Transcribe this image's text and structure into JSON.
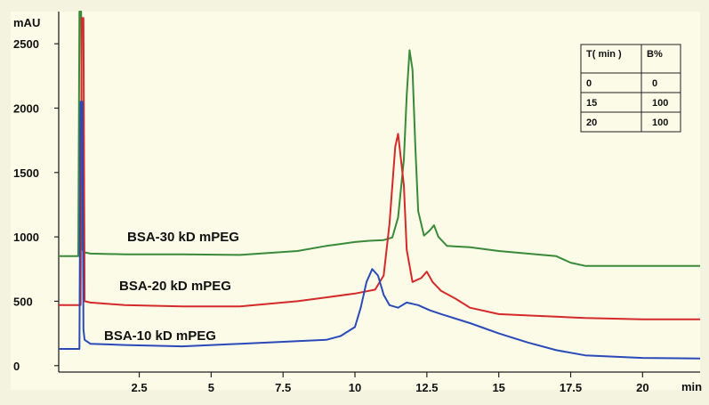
{
  "chart_data": {
    "type": "line",
    "xlabel": "min",
    "ylabel": "mAU",
    "xlim": [
      -0.3,
      22.0
    ],
    "ylim": [
      -50,
      2750
    ],
    "x_ticks": [
      "2.5",
      "5",
      "7.5",
      "10",
      "12.5",
      "15",
      "17.5",
      "20"
    ],
    "y_ticks": [
      "0",
      "500",
      "1000",
      "1500",
      "2000",
      "2500"
    ],
    "series": [
      {
        "name": "BSA-30 kD mPEG",
        "color": "#3a8a3a",
        "x": [
          -0.3,
          0.38,
          0.42,
          0.48,
          0.52,
          0.6,
          0.8,
          2,
          4,
          6,
          8,
          9,
          10,
          10.5,
          11,
          11.3,
          11.5,
          11.7,
          11.8,
          11.9,
          12.0,
          12.1,
          12.2,
          12.4,
          12.6,
          12.75,
          12.9,
          13.2,
          14,
          15,
          16,
          17,
          17.5,
          18,
          20,
          22
        ],
        "y": [
          850,
          850,
          2800,
          2800,
          900,
          880,
          870,
          865,
          865,
          860,
          890,
          930,
          960,
          970,
          975,
          995,
          1150,
          1600,
          2100,
          2450,
          2300,
          1700,
          1200,
          1010,
          1050,
          1090,
          1000,
          930,
          920,
          890,
          870,
          850,
          800,
          775,
          775,
          775
        ]
      },
      {
        "name": "BSA-20 kD mPEG",
        "color": "#d42a2a",
        "x": [
          -0.3,
          0.46,
          0.5,
          0.56,
          0.6,
          0.8,
          2,
          4,
          6,
          8,
          9,
          10,
          10.7,
          11.0,
          11.2,
          11.4,
          11.5,
          11.7,
          11.8,
          12.0,
          12.3,
          12.5,
          12.7,
          13,
          13.5,
          14,
          15,
          16,
          17,
          18,
          20,
          22
        ],
        "y": [
          470,
          470,
          2700,
          2700,
          500,
          490,
          470,
          460,
          460,
          500,
          530,
          560,
          590,
          700,
          1100,
          1700,
          1800,
          1400,
          900,
          650,
          680,
          730,
          650,
          580,
          520,
          450,
          400,
          390,
          380,
          370,
          360,
          360
        ]
      },
      {
        "name": "BSA-10 kD mPEG",
        "color": "#2a4ab8",
        "x": [
          -0.3,
          0.42,
          0.46,
          0.52,
          0.56,
          0.6,
          0.8,
          2,
          4,
          6,
          7,
          8,
          9,
          9.5,
          10,
          10.2,
          10.4,
          10.6,
          10.8,
          11.0,
          11.2,
          11.5,
          11.8,
          12.2,
          12.6,
          13,
          14,
          15,
          16,
          17,
          18,
          20,
          22
        ],
        "y": [
          130,
          130,
          2050,
          2050,
          280,
          200,
          170,
          160,
          150,
          170,
          180,
          190,
          200,
          230,
          300,
          450,
          650,
          750,
          700,
          550,
          470,
          450,
          490,
          470,
          430,
          400,
          330,
          250,
          180,
          120,
          80,
          60,
          55
        ]
      }
    ],
    "table": {
      "headers": [
        "T( min )",
        "B%"
      ],
      "rows": [
        [
          "0",
          "0"
        ],
        [
          "15",
          "100"
        ],
        [
          "20",
          "100"
        ]
      ]
    }
  }
}
